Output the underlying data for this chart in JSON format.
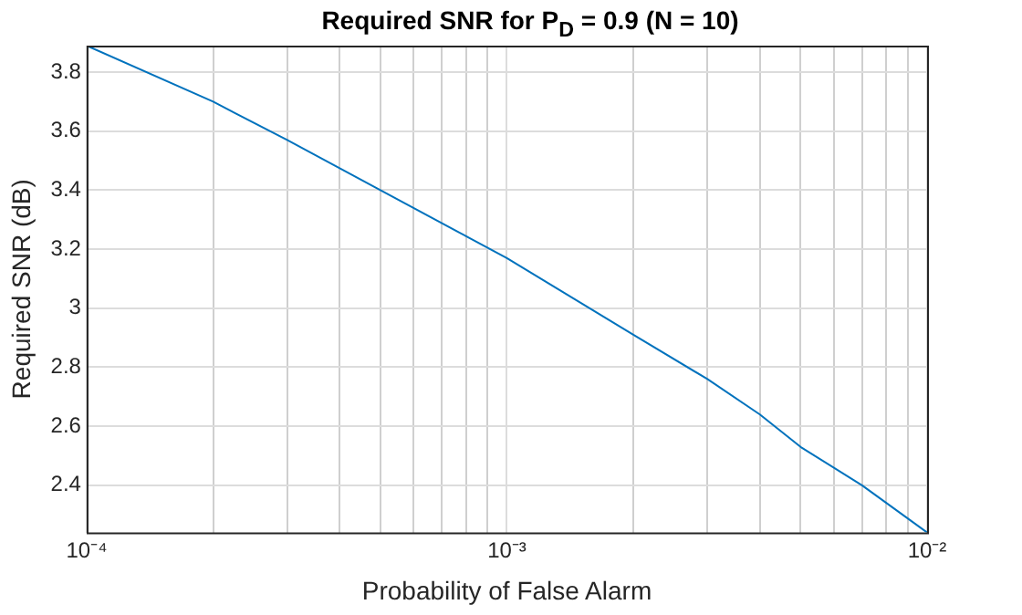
{
  "chart_data": {
    "type": "line",
    "title": "Required SNR for P$_{D}$ = 0.9 (N = 10)",
    "xlabel": "Probability of False Alarm",
    "ylabel": "Required SNR (dB)",
    "log": "x",
    "grid": true,
    "legend": false,
    "marker": "none",
    "line_style": "solid",
    "x": [
      0.0001,
      0.0002,
      0.0003,
      0.0005,
      0.001,
      0.002,
      0.003,
      0.004,
      0.005,
      0.007,
      0.01
    ],
    "series": [
      {
        "color": "#0072bd",
        "values": [
          3.89,
          3.7,
          3.57,
          3.4,
          3.17,
          2.91,
          2.76,
          2.64,
          2.53,
          2.4,
          2.24
        ]
      }
    ],
    "xlim": [
      0.0001,
      0.01
    ],
    "xticks": [
      {
        "value": 0.0001,
        "label": "10⁻⁴"
      },
      {
        "value": 0.0002,
        "label": null
      },
      {
        "value": 0.0003,
        "label": null
      },
      {
        "value": 0.0004,
        "label": null
      },
      {
        "value": 0.0005,
        "label": null
      },
      {
        "value": 0.0006,
        "label": null
      },
      {
        "value": 0.0007,
        "label": null
      },
      {
        "value": 0.0008,
        "label": null
      },
      {
        "value": 0.0009,
        "label": null
      },
      {
        "value": 0.001,
        "label": "10⁻³"
      },
      {
        "value": 0.002,
        "label": null
      },
      {
        "value": 0.003,
        "label": null
      },
      {
        "value": 0.004,
        "label": null
      },
      {
        "value": 0.005,
        "label": null
      },
      {
        "value": 0.006,
        "label": null
      },
      {
        "value": 0.007,
        "label": null
      },
      {
        "value": 0.008,
        "label": null
      },
      {
        "value": 0.009,
        "label": null
      },
      {
        "value": 0.01,
        "label": "10⁻²"
      }
    ],
    "ylim": [
      2.24,
      3.89
    ],
    "yticks": [
      2.4,
      2.6,
      2.8,
      3,
      3.2,
      3.4,
      3.6,
      3.8
    ]
  }
}
